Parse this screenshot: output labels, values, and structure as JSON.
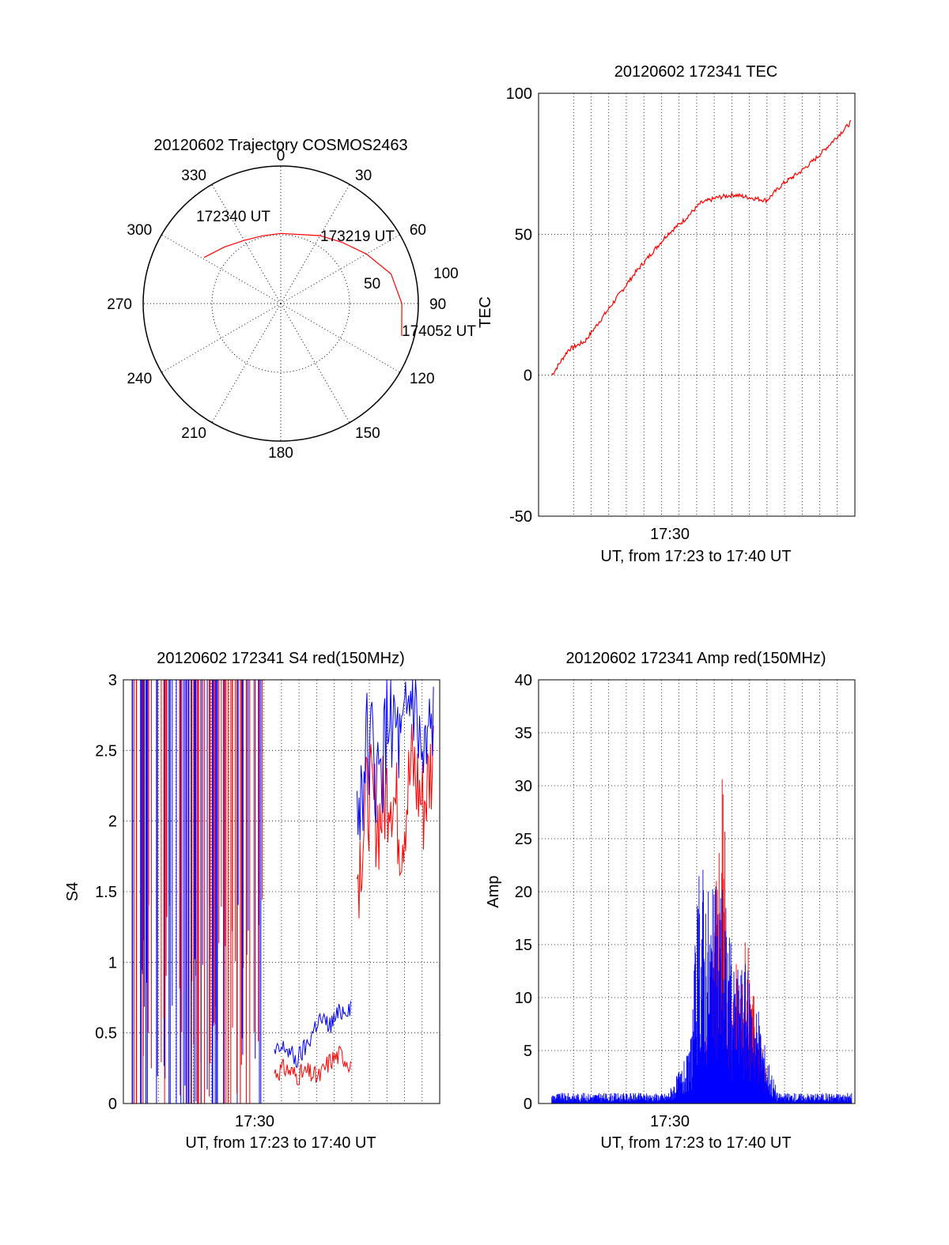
{
  "chart_data": [
    {
      "type": "polar",
      "title": "20120602 Trajectory COSMOS2463",
      "angle_labels": [
        "0",
        "30",
        "60",
        "90",
        "120",
        "150",
        "180",
        "210",
        "240",
        "270",
        "300",
        "330"
      ],
      "radial_labels": [
        "50",
        "100"
      ],
      "radial_max": 100,
      "annotations": [
        "172340 UT",
        "173219 UT",
        "174052 UT"
      ],
      "series": [
        {
          "color": "#ff0000",
          "points": [
            [
              301,
              65
            ],
            [
              315,
              58
            ],
            [
              330,
              53
            ],
            [
              345,
              51
            ],
            [
              0,
              51
            ],
            [
              15,
              52
            ],
            [
              30,
              57
            ],
            [
              45,
              63
            ],
            [
              60,
              72
            ],
            [
              75,
              83
            ],
            [
              90,
              88
            ],
            [
              105,
              91
            ]
          ]
        }
      ]
    },
    {
      "type": "line",
      "title": "20120602 172341 TEC",
      "ylabel": "TEC",
      "xlabel": "UT, from 17:23 to 17:40 UT",
      "x_tick_labels": [
        "17:30"
      ],
      "xlim": [
        17.383,
        17.67
      ],
      "ylim": [
        -50,
        100
      ],
      "y_ticks": [
        -50,
        0,
        50,
        100
      ],
      "grid": true,
      "series": [
        {
          "color": "#ff0000",
          "x": [
            17.395,
            17.41,
            17.425,
            17.44,
            17.455,
            17.47,
            17.485,
            17.5,
            17.515,
            17.53,
            17.545,
            17.56,
            17.575,
            17.59,
            17.605,
            17.62,
            17.635,
            17.65,
            17.667
          ],
          "y": [
            0,
            9,
            12,
            20,
            28,
            36,
            43,
            50,
            55,
            61,
            63,
            64,
            63,
            62,
            68,
            72,
            77,
            83,
            90
          ]
        }
      ]
    },
    {
      "type": "line",
      "title": "20120602 172341 S4 red(150MHz)",
      "ylabel": "S4",
      "xlabel": "UT, from 17:23 to 17:40 UT",
      "x_tick_labels": [
        "17:30"
      ],
      "xlim": [
        17.383,
        17.67
      ],
      "ylim": [
        0,
        3
      ],
      "y_ticks": [
        0,
        0.5,
        1,
        1.5,
        2,
        2.5,
        3
      ],
      "grid": true,
      "series": [
        {
          "color": "#ff0000",
          "segments": [
            {
              "x": [
                17.52,
                17.53,
                17.54,
                17.55,
                17.56,
                17.57,
                17.58,
                17.59
              ],
              "y": [
                0.22,
                0.25,
                0.2,
                0.22,
                0.18,
                0.3,
                0.35,
                0.28
              ]
            },
            {
              "x": [
                17.595,
                17.605,
                17.615,
                17.625,
                17.635,
                17.645,
                17.655,
                17.665
              ],
              "y": [
                1.6,
                2.2,
                2.0,
                2.3,
                1.9,
                2.4,
                2.1,
                2.5
              ]
            }
          ]
        },
        {
          "color": "#0000ff",
          "segments": [
            {
              "x": [
                17.52,
                17.53,
                17.54,
                17.55,
                17.56,
                17.57,
                17.58,
                17.59
              ],
              "y": [
                0.35,
                0.4,
                0.3,
                0.42,
                0.6,
                0.55,
                0.65,
                0.7
              ]
            },
            {
              "x": [
                17.595,
                17.605,
                17.615,
                17.625,
                17.635,
                17.645,
                17.655,
                17.665
              ],
              "y": [
                2.0,
                2.6,
                2.2,
                2.8,
                2.4,
                2.9,
                2.3,
                2.7
              ]
            }
          ]
        }
      ]
    },
    {
      "type": "line",
      "title": "20120602 172341 Amp red(150MHz)",
      "ylabel": "Amp",
      "xlabel": "UT, from 17:23 to 17:40 UT",
      "x_tick_labels": [
        "17:30"
      ],
      "xlim": [
        17.383,
        17.67
      ],
      "ylim": [
        0,
        40
      ],
      "y_ticks": [
        0,
        5,
        10,
        15,
        20,
        25,
        30,
        35,
        40
      ],
      "grid": true,
      "series": [
        {
          "color": "#ff0000",
          "x": [
            17.53,
            17.54,
            17.55,
            17.555,
            17.56,
            17.57,
            17.58,
            17.59
          ],
          "y": [
            2,
            12,
            35.5,
            14,
            12,
            17.5,
            10,
            3
          ]
        },
        {
          "color": "#0000ff",
          "x": [
            17.395,
            17.5,
            17.52,
            17.53,
            17.54,
            17.55,
            17.56,
            17.57,
            17.58,
            17.59,
            17.6,
            17.667
          ],
          "y": [
            1,
            1,
            5,
            25,
            20,
            23,
            13,
            14,
            10,
            5,
            1,
            1
          ]
        }
      ]
    }
  ]
}
